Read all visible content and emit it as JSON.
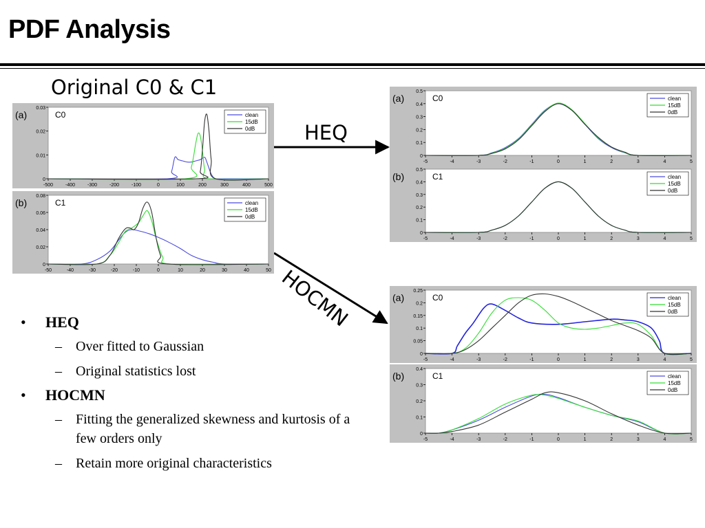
{
  "slide": {
    "title": "PDF Analysis",
    "original_label": "Original C0 & C1",
    "heq_label": "HEQ",
    "hocmn_label": "HOCMN"
  },
  "bullets": [
    {
      "text": "HEQ",
      "subs": [
        "Over fitted to Gaussian",
        "Original statistics lost"
      ]
    },
    {
      "text": "HOCMN",
      "subs": [
        "Fitting the generalized skewness and kurtosis of a few orders only",
        "Retain more original characteristics"
      ]
    }
  ],
  "colors": {
    "clean": "#4a4ae0",
    "15dB": "#33dd33",
    "0dB": "#333333",
    "panel_bg": "#c0c0c0",
    "arrow": "#000000"
  },
  "chart_data": [
    {
      "id": "orig-c0",
      "type": "line",
      "panel": "(a)",
      "name": "C0",
      "xlim": [
        -500,
        500
      ],
      "ylim": [
        0,
        0.03
      ],
      "xticks": [
        "-500",
        "-400",
        "-300",
        "-200",
        "-100",
        "0",
        "100",
        "200",
        "300",
        "400",
        "500"
      ],
      "yticks": [
        "0",
        "0.01",
        "0.02",
        "0.03"
      ],
      "legend": "top-right",
      "series": [
        {
          "name": "clean",
          "color": "#4a4ae0",
          "x": [
            -500,
            40,
            60,
            75,
            90,
            110,
            130,
            150,
            170,
            190,
            210,
            220,
            240,
            260,
            300,
            500
          ],
          "y": [
            0,
            0,
            0.003,
            0.009,
            0.008,
            0.0075,
            0.007,
            0.007,
            0.0075,
            0.008,
            0.009,
            0.007,
            0.002,
            0,
            0,
            0
          ]
        },
        {
          "name": "15dB",
          "color": "#33dd33",
          "x": [
            -500,
            120,
            150,
            170,
            180,
            190,
            200,
            210,
            230,
            500
          ],
          "y": [
            0,
            0,
            0.005,
            0.015,
            0.019,
            0.018,
            0.012,
            0.004,
            0,
            0
          ]
        },
        {
          "name": "0dB",
          "color": "#333333",
          "x": [
            -500,
            170,
            190,
            200,
            210,
            220,
            230,
            240,
            260,
            500
          ],
          "y": [
            0,
            0,
            0.003,
            0.012,
            0.024,
            0.027,
            0.02,
            0.008,
            0,
            0
          ]
        }
      ]
    },
    {
      "id": "orig-c1",
      "type": "line",
      "panel": "(b)",
      "name": "C1",
      "xlim": [
        -50,
        50
      ],
      "ylim": [
        0,
        0.08
      ],
      "xticks": [
        "-50",
        "-40",
        "-30",
        "-20",
        "-10",
        "0",
        "10",
        "20",
        "30",
        "40",
        "50"
      ],
      "yticks": [
        "0",
        "0.02",
        "0.04",
        "0.06",
        "0.08"
      ],
      "legend": "top-right",
      "series": [
        {
          "name": "clean",
          "color": "#4a4ae0",
          "x": [
            -50,
            -35,
            -28,
            -22,
            -18,
            -15,
            -12,
            -8,
            -4,
            0,
            5,
            10,
            15,
            20,
            25,
            30,
            50
          ],
          "y": [
            0,
            0,
            0.005,
            0.015,
            0.028,
            0.037,
            0.04,
            0.038,
            0.035,
            0.031,
            0.025,
            0.018,
            0.01,
            0.005,
            0.002,
            0,
            0
          ]
        },
        {
          "name": "15dB",
          "color": "#33dd33",
          "x": [
            -50,
            -28,
            -22,
            -18,
            -15,
            -12,
            -9,
            -7,
            -5,
            -3,
            -1,
            2,
            6,
            50
          ],
          "y": [
            0,
            0,
            0.01,
            0.025,
            0.038,
            0.042,
            0.048,
            0.056,
            0.062,
            0.05,
            0.03,
            0.008,
            0,
            0
          ]
        },
        {
          "name": "0dB",
          "color": "#333333",
          "x": [
            -50,
            -28,
            -22,
            -18,
            -15,
            -13,
            -11,
            -9,
            -7,
            -5,
            -3,
            -1,
            1,
            4,
            50
          ],
          "y": [
            0,
            0,
            0.01,
            0.03,
            0.041,
            0.042,
            0.04,
            0.048,
            0.065,
            0.072,
            0.06,
            0.03,
            0.01,
            0,
            0
          ]
        }
      ]
    },
    {
      "id": "heq-c0",
      "type": "line",
      "panel": "(a)",
      "name": "C0",
      "xlim": [
        -5,
        5
      ],
      "ylim": [
        0,
        0.5
      ],
      "xticks": [
        "-5",
        "-4",
        "-3",
        "-2",
        "-1",
        "0",
        "1",
        "2",
        "3",
        "4",
        "5"
      ],
      "yticks": [
        "0",
        "0.1",
        "0.2",
        "0.3",
        "0.4",
        "0.5"
      ],
      "legend": "top-right",
      "series": [
        {
          "name": "clean",
          "color": "#4a4ae0",
          "x": [
            -5,
            -3,
            -2.5,
            -2,
            -1.5,
            -1,
            -0.5,
            0,
            0.5,
            1,
            1.5,
            2,
            2.5,
            3,
            5
          ],
          "y": [
            0,
            0,
            0.02,
            0.06,
            0.13,
            0.24,
            0.35,
            0.4,
            0.35,
            0.24,
            0.13,
            0.06,
            0.02,
            0,
            0
          ]
        },
        {
          "name": "15dB",
          "color": "#33dd33",
          "x": [
            -5,
            -3,
            -2.5,
            -2,
            -1.5,
            -1,
            -0.5,
            0,
            0.5,
            1,
            1.5,
            2,
            2.5,
            3,
            5
          ],
          "y": [
            0,
            0,
            0.018,
            0.055,
            0.125,
            0.235,
            0.345,
            0.405,
            0.355,
            0.245,
            0.135,
            0.065,
            0.022,
            0,
            0
          ]
        },
        {
          "name": "0dB",
          "color": "#333333",
          "x": [
            -5,
            -3,
            -2.5,
            -2,
            -1.5,
            -1,
            -0.5,
            0,
            0.5,
            1,
            1.5,
            2,
            2.5,
            3,
            5
          ],
          "y": [
            0,
            0,
            0.015,
            0.05,
            0.12,
            0.23,
            0.34,
            0.4,
            0.35,
            0.24,
            0.14,
            0.065,
            0.025,
            0,
            0
          ]
        }
      ]
    },
    {
      "id": "heq-c1",
      "type": "line",
      "panel": "(b)",
      "name": "C1",
      "xlim": [
        -5,
        5
      ],
      "ylim": [
        0,
        0.5
      ],
      "xticks": [
        "-5",
        "-4",
        "-3",
        "-2",
        "-1",
        "0",
        "1",
        "2",
        "3",
        "4",
        "5"
      ],
      "yticks": [
        "0",
        "0.1",
        "0.2",
        "0.3",
        "0.4",
        "0.5"
      ],
      "legend": "top-right",
      "series": [
        {
          "name": "clean",
          "color": "#4a4ae0",
          "x": [
            -5,
            -3,
            -2.5,
            -2,
            -1.5,
            -1,
            -0.5,
            0,
            0.5,
            1,
            1.5,
            2,
            2.5,
            3,
            5
          ],
          "y": [
            0,
            0,
            0.018,
            0.055,
            0.13,
            0.24,
            0.35,
            0.4,
            0.35,
            0.24,
            0.13,
            0.055,
            0.018,
            0,
            0
          ]
        },
        {
          "name": "15dB",
          "color": "#33dd33",
          "x": [
            -5,
            -3,
            -2.5,
            -2,
            -1.5,
            -1,
            -0.5,
            0,
            0.5,
            1,
            1.5,
            2,
            2.5,
            3,
            5
          ],
          "y": [
            0,
            0,
            0.018,
            0.055,
            0.13,
            0.24,
            0.35,
            0.4,
            0.35,
            0.24,
            0.13,
            0.055,
            0.018,
            0,
            0
          ]
        },
        {
          "name": "0dB",
          "color": "#333333",
          "x": [
            -5,
            -3,
            -2.5,
            -2,
            -1.5,
            -1,
            -0.5,
            0,
            0.5,
            1,
            1.5,
            2,
            2.5,
            3,
            5
          ],
          "y": [
            0,
            0,
            0.018,
            0.055,
            0.13,
            0.24,
            0.35,
            0.4,
            0.35,
            0.24,
            0.13,
            0.055,
            0.018,
            0,
            0
          ]
        }
      ]
    },
    {
      "id": "hocmn-c0",
      "type": "line",
      "panel": "(a)",
      "name": "C0",
      "xlim": [
        -5,
        5
      ],
      "ylim": [
        0,
        0.25
      ],
      "xticks": [
        "-5",
        "-4",
        "-3",
        "-2",
        "-1",
        "0",
        "1",
        "2",
        "3",
        "4",
        "5"
      ],
      "yticks": [
        "0",
        "0.05",
        "0.1",
        "0.15",
        "0.2",
        "0.25"
      ],
      "legend": "top-right",
      "series": [
        {
          "name": "clean",
          "color": "#2222dd",
          "x": [
            -5,
            -4,
            -3.8,
            -3.5,
            -3.2,
            -2.8,
            -2.5,
            -2,
            -1.5,
            -1,
            0,
            1,
            2,
            2.5,
            3,
            3.5,
            3.8,
            4,
            5
          ],
          "y": [
            0,
            0,
            0.03,
            0.08,
            0.12,
            0.18,
            0.195,
            0.17,
            0.14,
            0.12,
            0.115,
            0.125,
            0.135,
            0.132,
            0.125,
            0.1,
            0.05,
            0,
            0
          ]
        },
        {
          "name": "15dB",
          "color": "#33dd33",
          "x": [
            -5,
            -4,
            -3.5,
            -3,
            -2.5,
            -2,
            -1.5,
            -1,
            -0.5,
            0,
            0.5,
            1,
            1.5,
            2,
            2.5,
            3,
            3.5,
            4,
            5
          ],
          "y": [
            0,
            0,
            0.02,
            0.08,
            0.16,
            0.21,
            0.22,
            0.21,
            0.17,
            0.12,
            0.1,
            0.095,
            0.1,
            0.11,
            0.12,
            0.115,
            0.07,
            0,
            0
          ]
        },
        {
          "name": "0dB",
          "color": "#333333",
          "x": [
            -5,
            -4,
            -3.5,
            -3,
            -2.5,
            -2,
            -1.5,
            -1,
            -0.5,
            0,
            0.5,
            1,
            1.5,
            2,
            2.5,
            3,
            3.5,
            4,
            5
          ],
          "y": [
            0,
            0,
            0.015,
            0.05,
            0.1,
            0.15,
            0.2,
            0.23,
            0.235,
            0.225,
            0.205,
            0.18,
            0.155,
            0.13,
            0.11,
            0.09,
            0.06,
            0,
            0
          ]
        }
      ]
    },
    {
      "id": "hocmn-c1",
      "type": "line",
      "panel": "(b)",
      "name": "C1",
      "xlim": [
        -5,
        5
      ],
      "ylim": [
        0,
        0.4
      ],
      "xticks": [
        "-5",
        "-4",
        "-3",
        "-2",
        "-1",
        "0",
        "1",
        "2",
        "3",
        "4",
        "5"
      ],
      "yticks": [
        "0",
        "0.1",
        "0.2",
        "0.3",
        "0.4"
      ],
      "legend": "top-right",
      "series": [
        {
          "name": "clean",
          "color": "#4a4ae0",
          "x": [
            -5,
            -4.5,
            -4,
            -3,
            -2,
            -1,
            -0.5,
            0,
            1,
            2,
            3,
            4,
            5
          ],
          "y": [
            0,
            0,
            0.02,
            0.08,
            0.16,
            0.23,
            0.24,
            0.22,
            0.16,
            0.11,
            0.07,
            0,
            0
          ]
        },
        {
          "name": "15dB",
          "color": "#33dd33",
          "x": [
            -5,
            -4.5,
            -4,
            -3,
            -2,
            -1,
            -0.5,
            0,
            1,
            2,
            3,
            4,
            5
          ],
          "y": [
            0,
            0,
            0.02,
            0.09,
            0.18,
            0.235,
            0.235,
            0.215,
            0.16,
            0.11,
            0.075,
            0,
            0
          ]
        },
        {
          "name": "0dB",
          "color": "#333333",
          "x": [
            -5,
            -4.5,
            -4,
            -3,
            -2,
            -1,
            -0.5,
            0,
            1,
            2,
            3,
            4,
            5
          ],
          "y": [
            0,
            0,
            0.01,
            0.05,
            0.13,
            0.21,
            0.25,
            0.25,
            0.2,
            0.12,
            0.05,
            0,
            0
          ]
        }
      ]
    }
  ]
}
